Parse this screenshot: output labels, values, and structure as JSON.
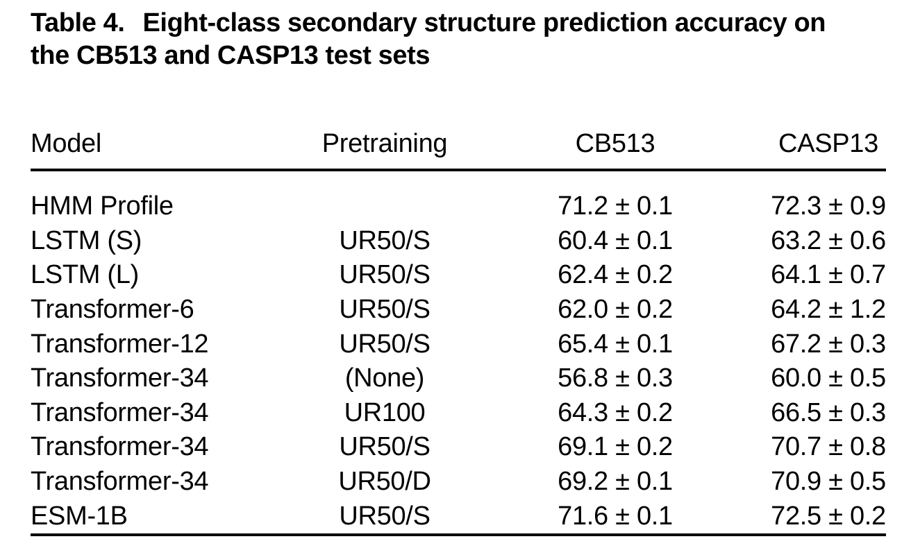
{
  "title": {
    "label": "Table 4.",
    "line1": "Eight-class secondary structure prediction accuracy on",
    "line2": "the CB513 and CASP13 test sets"
  },
  "table": {
    "columns": [
      "Model",
      "Pretraining",
      "CB513",
      "CASP13"
    ],
    "rows": [
      {
        "model": "HMM Profile",
        "pretraining": "",
        "cb513": "71.2 ± 0.1",
        "casp13": "72.3 ± 0.9"
      },
      {
        "model": "LSTM (S)",
        "pretraining": "UR50/S",
        "cb513": "60.4 ± 0.1",
        "casp13": "63.2 ± 0.6"
      },
      {
        "model": "LSTM (L)",
        "pretraining": "UR50/S",
        "cb513": "62.4 ± 0.2",
        "casp13": "64.1 ± 0.7"
      },
      {
        "model": "Transformer-6",
        "pretraining": "UR50/S",
        "cb513": "62.0 ± 0.2",
        "casp13": "64.2 ± 1.2"
      },
      {
        "model": "Transformer-12",
        "pretraining": "UR50/S",
        "cb513": "65.4 ± 0.1",
        "casp13": "67.2 ± 0.3"
      },
      {
        "model": "Transformer-34",
        "pretraining": "(None)",
        "cb513": "56.8 ± 0.3",
        "casp13": "60.0 ± 0.5"
      },
      {
        "model": "Transformer-34",
        "pretraining": "UR100",
        "cb513": "64.3 ± 0.2",
        "casp13": "66.5 ± 0.3"
      },
      {
        "model": "Transformer-34",
        "pretraining": "UR50/S",
        "cb513": "69.1 ± 0.2",
        "casp13": "70.7 ± 0.8"
      },
      {
        "model": "Transformer-34",
        "pretraining": "UR50/D",
        "cb513": "69.2 ± 0.1",
        "casp13": "70.9 ± 0.5"
      },
      {
        "model": "ESM-1B",
        "pretraining": "UR50/S",
        "cb513": "71.6 ± 0.1",
        "casp13": "72.5 ± 0.2"
      }
    ]
  },
  "colors": {
    "text": "#000000",
    "background": "#ffffff",
    "rule": "#000000"
  },
  "chart_data": {
    "type": "table",
    "title": "Table 4. Eight-class secondary structure prediction accuracy on the CB513 and CASP13 test sets",
    "columns": [
      "Model",
      "Pretraining",
      "CB513",
      "CASP13"
    ],
    "models": [
      "HMM Profile",
      "LSTM (S)",
      "LSTM (L)",
      "Transformer-6",
      "Transformer-12",
      "Transformer-34",
      "Transformer-34",
      "Transformer-34",
      "Transformer-34",
      "ESM-1B"
    ],
    "pretraining": [
      "",
      "UR50/S",
      "UR50/S",
      "UR50/S",
      "UR50/S",
      "(None)",
      "UR100",
      "UR50/S",
      "UR50/D",
      "UR50/S"
    ],
    "cb513_mean": [
      71.2,
      60.4,
      62.4,
      62.0,
      65.4,
      56.8,
      64.3,
      69.1,
      69.2,
      71.6
    ],
    "cb513_std": [
      0.1,
      0.1,
      0.2,
      0.2,
      0.1,
      0.3,
      0.2,
      0.2,
      0.1,
      0.1
    ],
    "casp13_mean": [
      72.3,
      63.2,
      64.1,
      64.2,
      67.2,
      60.0,
      66.5,
      70.7,
      70.9,
      72.5
    ],
    "casp13_std": [
      0.9,
      0.6,
      0.7,
      1.2,
      0.3,
      0.5,
      0.3,
      0.8,
      0.5,
      0.2
    ]
  }
}
